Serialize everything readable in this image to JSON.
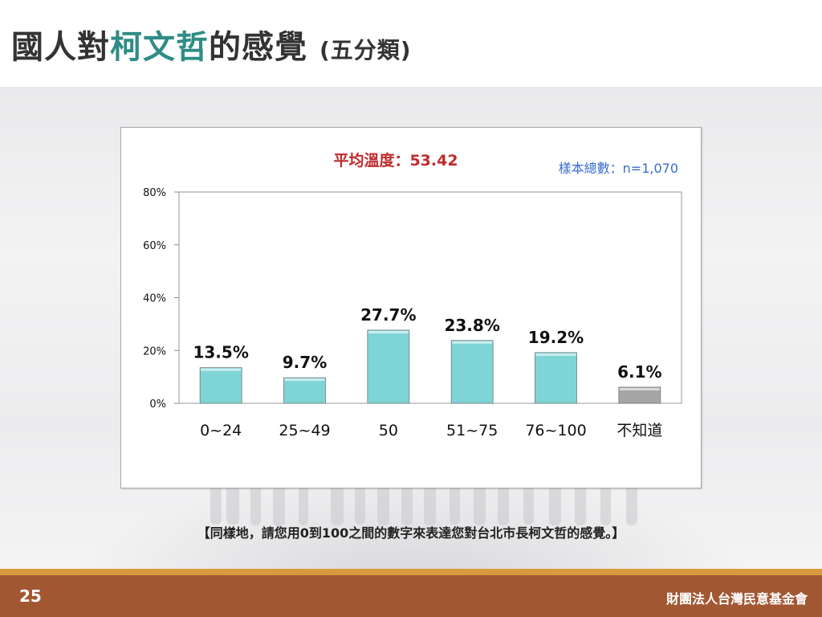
{
  "slide": {
    "title_parts": [
      "國人對",
      "柯文哲",
      "的感覺 ",
      "(五分類)"
    ],
    "caption": "【同樣地，請您用0到100之間的數字來表達您對台北市長柯文哲的感覺。】",
    "page_number": "25",
    "organization": "財團法人台灣民意基金會",
    "colors": {
      "accent": "#2f8c86",
      "footer": "#a25733",
      "stripe": "#d89a3c"
    }
  },
  "chart_data": {
    "type": "bar",
    "title": "平均溫度：53.42",
    "subtitle": "樣本總數：n=1,070",
    "categories": [
      "0~24",
      "25~49",
      "50",
      "51~75",
      "76~100",
      "不知道"
    ],
    "values": [
      13.5,
      9.7,
      27.7,
      23.8,
      19.2,
      6.1
    ],
    "value_labels": [
      "13.5%",
      "9.7%",
      "27.7%",
      "23.8%",
      "19.2%",
      "6.1%"
    ],
    "bar_colors": [
      "#7fd4d6",
      "#7fd4d6",
      "#7fd4d6",
      "#7fd4d6",
      "#7fd4d6",
      "#a6a6a6"
    ],
    "ylim": [
      0,
      80
    ],
    "yticks": [
      0,
      20,
      40,
      60,
      80
    ],
    "ytick_labels": [
      "0%",
      "20%",
      "40%",
      "60%",
      "80%"
    ],
    "grid": false,
    "legend": "none",
    "colors": {
      "title": "#c0292b",
      "subtitle": "#3a6bd0"
    }
  }
}
